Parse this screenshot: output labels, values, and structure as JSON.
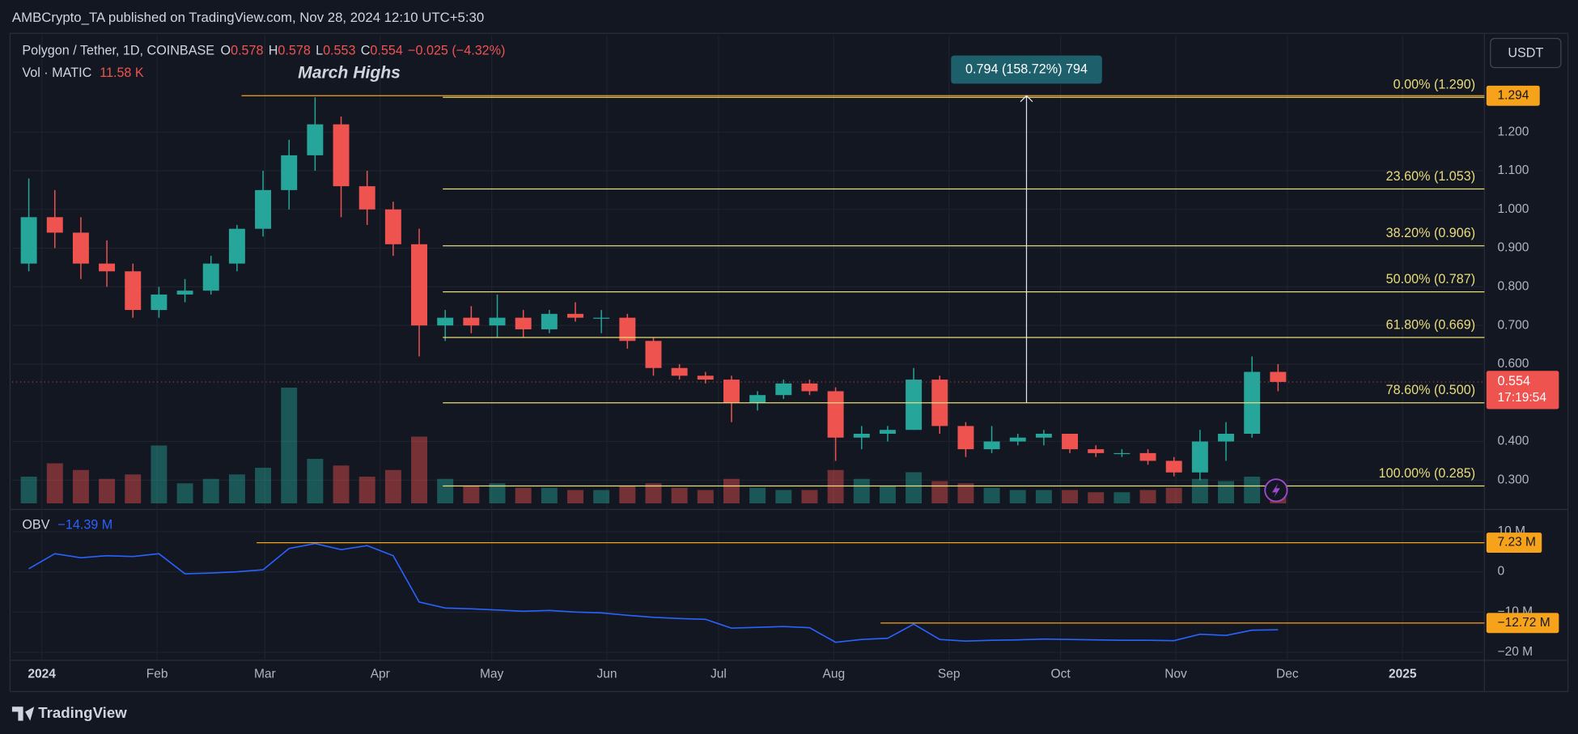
{
  "header": {
    "publisher": "AMBCrypto_TA published on TradingView.com, Nov 28, 2024 12:10 UTC+5:30",
    "symbol": "Polygon / Tether, 1D, COINBASE",
    "ohlc": [
      {
        "label": "O",
        "value": 0.578
      },
      {
        "label": "H",
        "value": 0.578
      },
      {
        "label": "L",
        "value": 0.553
      },
      {
        "label": "C",
        "value": 0.554
      }
    ],
    "change": "−0.025 (−4.32%)",
    "volume_label": "Vol · MATIC",
    "volume_value": "11.58 K",
    "currency": "USDT"
  },
  "footer": {
    "brand": "TradingView"
  },
  "chart_data": [
    {
      "type": "candlestick",
      "annotation": "March Highs",
      "x": [
        "2023-12-25",
        "2024-01-01",
        "2024-01-08",
        "2024-01-15",
        "2024-01-22",
        "2024-01-29",
        "2024-02-05",
        "2024-02-12",
        "2024-02-19",
        "2024-02-26",
        "2024-03-04",
        "2024-03-11",
        "2024-03-18",
        "2024-03-25",
        "2024-04-01",
        "2024-04-08",
        "2024-04-15",
        "2024-04-22",
        "2024-04-29",
        "2024-05-06",
        "2024-05-13",
        "2024-05-20",
        "2024-05-27",
        "2024-06-03",
        "2024-06-10",
        "2024-06-17",
        "2024-06-24",
        "2024-07-01",
        "2024-07-08",
        "2024-07-15",
        "2024-07-22",
        "2024-07-29",
        "2024-08-05",
        "2024-08-12",
        "2024-08-19",
        "2024-08-26",
        "2024-09-02",
        "2024-09-09",
        "2024-09-16",
        "2024-09-23",
        "2024-09-30",
        "2024-10-07",
        "2024-10-14",
        "2024-10-21",
        "2024-10-28",
        "2024-11-04",
        "2024-11-11",
        "2024-11-18",
        "2024-11-25"
      ],
      "open": [
        0.86,
        0.98,
        0.94,
        0.86,
        0.84,
        0.74,
        0.78,
        0.79,
        0.86,
        0.95,
        1.05,
        1.14,
        1.22,
        1.06,
        1.0,
        0.91,
        0.7,
        0.72,
        0.7,
        0.72,
        0.69,
        0.73,
        0.72,
        0.72,
        0.66,
        0.59,
        0.57,
        0.56,
        0.5,
        0.52,
        0.55,
        0.53,
        0.41,
        0.42,
        0.43,
        0.56,
        0.44,
        0.38,
        0.4,
        0.41,
        0.42,
        0.38,
        0.37,
        0.37,
        0.35,
        0.32,
        0.4,
        0.42,
        0.58
      ],
      "high": [
        1.08,
        1.05,
        0.98,
        0.92,
        0.86,
        0.8,
        0.82,
        0.88,
        0.96,
        1.1,
        1.18,
        1.29,
        1.24,
        1.1,
        1.02,
        0.95,
        0.74,
        0.75,
        0.78,
        0.74,
        0.74,
        0.76,
        0.74,
        0.73,
        0.67,
        0.6,
        0.58,
        0.57,
        0.53,
        0.56,
        0.56,
        0.54,
        0.44,
        0.44,
        0.59,
        0.57,
        0.45,
        0.44,
        0.42,
        0.43,
        0.42,
        0.39,
        0.38,
        0.38,
        0.36,
        0.43,
        0.45,
        0.62,
        0.6
      ],
      "low": [
        0.84,
        0.9,
        0.82,
        0.8,
        0.72,
        0.72,
        0.76,
        0.78,
        0.84,
        0.93,
        1.0,
        1.1,
        0.98,
        0.96,
        0.88,
        0.62,
        0.66,
        0.68,
        0.67,
        0.67,
        0.68,
        0.71,
        0.68,
        0.64,
        0.57,
        0.56,
        0.55,
        0.45,
        0.48,
        0.51,
        0.52,
        0.35,
        0.38,
        0.4,
        0.43,
        0.42,
        0.36,
        0.37,
        0.39,
        0.39,
        0.37,
        0.36,
        0.36,
        0.34,
        0.31,
        0.3,
        0.35,
        0.41,
        0.53
      ],
      "close": [
        0.98,
        0.94,
        0.86,
        0.84,
        0.74,
        0.78,
        0.79,
        0.86,
        0.95,
        1.05,
        1.14,
        1.22,
        1.06,
        1.0,
        0.91,
        0.7,
        0.72,
        0.7,
        0.72,
        0.69,
        0.73,
        0.72,
        0.72,
        0.66,
        0.59,
        0.57,
        0.56,
        0.5,
        0.52,
        0.55,
        0.53,
        0.41,
        0.42,
        0.43,
        0.56,
        0.44,
        0.38,
        0.4,
        0.41,
        0.42,
        0.38,
        0.37,
        0.37,
        0.35,
        0.32,
        0.4,
        0.42,
        0.58,
        0.554
      ],
      "volume": [
        120000,
        180000,
        150000,
        110000,
        130000,
        260000,
        90000,
        110000,
        130000,
        160000,
        520000,
        200000,
        170000,
        120000,
        150000,
        300000,
        110000,
        80000,
        90000,
        70000,
        70000,
        60000,
        60000,
        80000,
        90000,
        70000,
        60000,
        110000,
        70000,
        60000,
        60000,
        150000,
        110000,
        80000,
        140000,
        100000,
        90000,
        70000,
        60000,
        60000,
        60000,
        50000,
        50000,
        60000,
        70000,
        110000,
        100000,
        120000,
        60000
      ],
      "up_color": "#26a69a",
      "down_color": "#ef5350",
      "xlim": [
        "2023-12-24",
        "2025-01-23"
      ],
      "ylim": [
        0.24,
        1.45
      ],
      "yticks": [
        {
          "value": 0.3,
          "label": "0.300"
        },
        {
          "value": 0.4,
          "label": "0.400"
        },
        {
          "value": 0.6,
          "label": "0.600"
        },
        {
          "value": 0.7,
          "label": "0.700"
        },
        {
          "value": 0.8,
          "label": "0.800"
        },
        {
          "value": 0.9,
          "label": "0.900"
        },
        {
          "value": 1.0,
          "label": "1.000"
        },
        {
          "value": 1.1,
          "label": "1.100"
        },
        {
          "value": 1.2,
          "label": "1.200"
        }
      ],
      "grid": true,
      "fib_color": "#e9dc7a",
      "fib_levels": [
        {
          "label": "0.00% (1.290)",
          "value": 1.29
        },
        {
          "label": "23.60% (1.053)",
          "value": 1.053
        },
        {
          "label": "38.20% (0.906)",
          "value": 0.906
        },
        {
          "label": "50.00% (0.787)",
          "value": 0.787
        },
        {
          "label": "61.80% (0.669)",
          "value": 0.669
        },
        {
          "label": "78.60% (0.500)",
          "value": 0.5
        },
        {
          "label": "100.00% (0.285)",
          "value": 0.285
        }
      ],
      "hline": 1.294,
      "hline_color": "#f7a21b",
      "last_price": 0.554,
      "countdown": "17:19:54",
      "measure": {
        "label": "0.794 (158.72%) 794",
        "from": 0.5,
        "to": 1.294
      }
    },
    {
      "type": "line",
      "name": "OBV",
      "value_label": "−14.39 M",
      "color": "#2962ff",
      "x": [
        "2023-12-25",
        "2024-01-01",
        "2024-01-08",
        "2024-01-15",
        "2024-01-22",
        "2024-01-29",
        "2024-02-05",
        "2024-02-12",
        "2024-02-19",
        "2024-02-26",
        "2024-03-04",
        "2024-03-11",
        "2024-03-18",
        "2024-03-25",
        "2024-04-01",
        "2024-04-08",
        "2024-04-15",
        "2024-04-22",
        "2024-04-29",
        "2024-05-06",
        "2024-05-13",
        "2024-05-20",
        "2024-05-27",
        "2024-06-03",
        "2024-06-10",
        "2024-06-17",
        "2024-06-24",
        "2024-07-01",
        "2024-07-08",
        "2024-07-15",
        "2024-07-22",
        "2024-07-29",
        "2024-08-05",
        "2024-08-12",
        "2024-08-19",
        "2024-08-26",
        "2024-09-02",
        "2024-09-09",
        "2024-09-16",
        "2024-09-23",
        "2024-09-30",
        "2024-10-07",
        "2024-10-14",
        "2024-10-21",
        "2024-10-28",
        "2024-11-04",
        "2024-11-11",
        "2024-11-18",
        "2024-11-25"
      ],
      "values": [
        750000,
        4500000,
        3500000,
        4000000,
        3800000,
        4500000,
        -500000,
        -300000,
        0,
        500000,
        5800000,
        7000000,
        5500000,
        6500000,
        4000000,
        -7500000,
        -9000000,
        -9200000,
        -9500000,
        -9800000,
        -9600000,
        -10000000,
        -10200000,
        -10800000,
        -11300000,
        -11600000,
        -11800000,
        -14000000,
        -13800000,
        -13600000,
        -13900000,
        -17500000,
        -16800000,
        -16500000,
        -13000000,
        -16800000,
        -17200000,
        -17000000,
        -16900000,
        -16700000,
        -16800000,
        -16900000,
        -17000000,
        -17000000,
        -17100000,
        -15500000,
        -15800000,
        -14500000,
        -14390000
      ],
      "xlim": [
        "2023-12-24",
        "2025-01-23"
      ],
      "xticks": [
        {
          "value": "2024-01-01",
          "label": "2024"
        },
        {
          "value": "2024-02-01",
          "label": "Feb"
        },
        {
          "value": "2024-03-01",
          "label": "Mar"
        },
        {
          "value": "2024-04-01",
          "label": "Apr"
        },
        {
          "value": "2024-05-01",
          "label": "May"
        },
        {
          "value": "2024-06-01",
          "label": "Jun"
        },
        {
          "value": "2024-07-01",
          "label": "Jul"
        },
        {
          "value": "2024-08-01",
          "label": "Aug"
        },
        {
          "value": "2024-09-01",
          "label": "Sep"
        },
        {
          "value": "2024-10-01",
          "label": "Oct"
        },
        {
          "value": "2024-11-01",
          "label": "Nov"
        },
        {
          "value": "2024-12-01",
          "label": "Dec"
        },
        {
          "value": "2025-01-01",
          "label": "2025"
        }
      ],
      "ylim": [
        -21750000,
        14000000
      ],
      "yticks": [
        {
          "value": 10000000,
          "label": "10 M"
        },
        0,
        {
          "value": -10000000,
          "label": "−10 M"
        },
        {
          "value": -20000000,
          "label": "−20 M"
        }
      ],
      "grid": true,
      "hline_color": "#f7a21b",
      "hlines": [
        {
          "value": 7230000,
          "label": "7.23 M"
        },
        {
          "value": -12720000,
          "label": "−12.72 M"
        }
      ]
    }
  ]
}
